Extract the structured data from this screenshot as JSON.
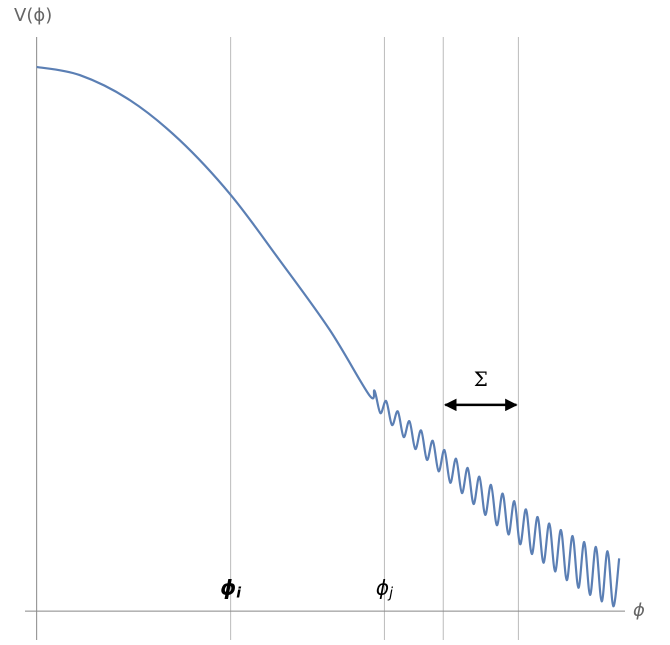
{
  "chart_data": {
    "type": "line",
    "y_label": "V(ϕ)",
    "x_label": "ϕ",
    "color": "#5b7fb4",
    "xlim": [
      -0.2,
      10.1
    ],
    "ylim": [
      -0.053,
      1.055
    ],
    "xticks": [
      0,
      3.33,
      5.97,
      6.98,
      8.27
    ],
    "grid": true,
    "x": [
      0,
      0.74,
      1.6,
      2.45,
      3.33,
      4.17,
      5.03,
      5.71,
      5.8,
      5.9,
      6.0,
      6.1,
      6.2,
      6.3,
      6.4,
      6.5,
      6.6,
      6.7,
      6.8,
      6.9,
      7.0,
      7.1,
      7.2,
      7.3,
      7.4,
      7.5,
      7.6,
      7.7,
      7.8,
      7.9,
      8.0,
      8.1,
      8.2,
      8.3,
      8.4,
      8.5,
      8.6,
      8.7,
      8.8,
      8.9,
      9.0,
      9.1,
      9.2,
      9.3,
      9.4,
      9.5,
      9.6,
      9.7,
      9.8,
      9.9,
      10.0
    ],
    "values": [
      1.0,
      0.985,
      0.939,
      0.866,
      0.765,
      0.645,
      0.517,
      0.397,
      0.405,
      0.364,
      0.386,
      0.342,
      0.367,
      0.32,
      0.349,
      0.298,
      0.332,
      0.278,
      0.313,
      0.257,
      0.296,
      0.236,
      0.28,
      0.217,
      0.263,
      0.197,
      0.247,
      0.177,
      0.232,
      0.158,
      0.216,
      0.141,
      0.202,
      0.123,
      0.187,
      0.105,
      0.173,
      0.089,
      0.161,
      0.073,
      0.149,
      0.057,
      0.138,
      0.043,
      0.127,
      0.03,
      0.118,
      0.018,
      0.11,
      0.009,
      0.097
    ],
    "annotations": [
      {
        "text": "ϕ",
        "subscript": "i",
        "x": 3.33,
        "y": 0.042,
        "bold": true
      },
      {
        "text": "ϕ",
        "subscript": "j",
        "x": 5.97,
        "y": 0.042,
        "bold": false
      },
      {
        "text": "Σ",
        "x": 7.625,
        "y": 0.425,
        "bold": false
      }
    ],
    "arrow": {
      "x": [
        6.98,
        8.27
      ],
      "y": 0.379
    }
  }
}
